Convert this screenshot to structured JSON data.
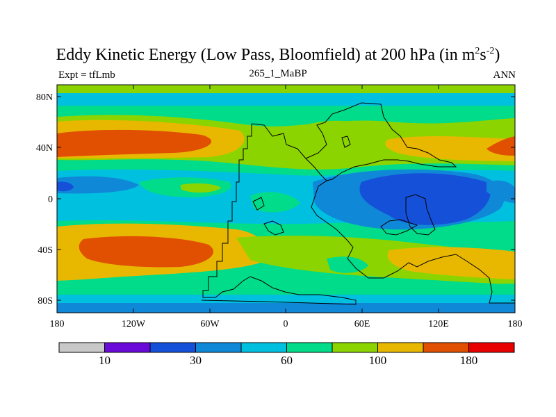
{
  "header": {
    "title_main": "Eddy Kinetic Energy (Low Pass, Bloomfield) at 200 hPa (in m",
    "title_sup1": "2",
    "title_mid": "s",
    "title_sup2": "-2",
    "title_end": ")",
    "left_label": "Expt = tfLmb",
    "center_label": "265_1_MaBP",
    "right_label": "ANN"
  },
  "axes": {
    "y_ticks": [
      "80N",
      "40N",
      "0",
      "40S",
      "80S"
    ],
    "x_ticks": [
      "180",
      "120W",
      "60W",
      "0",
      "60E",
      "120E",
      "180"
    ]
  },
  "colorbar": {
    "colors": [
      "#c8c8c8",
      "#6a0ad8",
      "#1550d8",
      "#1088d8",
      "#00c0e0",
      "#00dc8a",
      "#8cd400",
      "#e8b800",
      "#e05000",
      "#e80000"
    ],
    "labels": [
      {
        "text": "10",
        "after_box": 1
      },
      {
        "text": "30",
        "after_box": 3
      },
      {
        "text": "60",
        "after_box": 5
      },
      {
        "text": "100",
        "after_box": 7
      },
      {
        "text": "180",
        "after_box": 9
      }
    ]
  }
}
